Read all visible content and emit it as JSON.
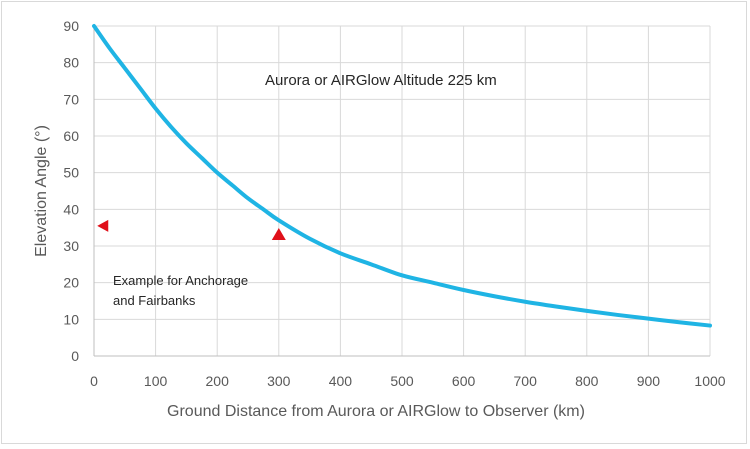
{
  "chart_data": {
    "type": "line",
    "title": "",
    "xlabel": "Ground Distance from Aurora or AIRGlow to Observer (km)",
    "ylabel": "Elevation Angle (°)",
    "xlim": [
      0,
      1000
    ],
    "ylim": [
      0,
      90
    ],
    "xticks": [
      "0",
      "100",
      "200",
      "300",
      "400",
      "500",
      "600",
      "700",
      "800",
      "900",
      "1000"
    ],
    "yticks": [
      "0",
      "10",
      "20",
      "30",
      "40",
      "50",
      "60",
      "70",
      "80",
      "90"
    ],
    "grid": true,
    "legend": "none",
    "series": [
      {
        "color": "#1fb4e4",
        "x": [
          0,
          25,
          50,
          75,
          100,
          125,
          150,
          175,
          200,
          225,
          250,
          275,
          300,
          350,
          400,
          450,
          500,
          550,
          600,
          650,
          700,
          750,
          800,
          850,
          900,
          950,
          1000
        ],
        "y": [
          90,
          84,
          78.5,
          73,
          67.5,
          62.5,
          58,
          54,
          50,
          46.5,
          43,
          40,
          37,
          32,
          28,
          25,
          22,
          20,
          18,
          16.3,
          14.8,
          13.5,
          12.3,
          11.2,
          10.2,
          9.2,
          8.3
        ]
      }
    ],
    "markers": [
      {
        "shape": "triangle-left",
        "x": 15,
        "y": 35.5,
        "color": "#e0101a"
      },
      {
        "shape": "triangle-up",
        "x": 300,
        "y": 33,
        "color": "#e0101a"
      }
    ],
    "annotations": [
      {
        "text": "Aurora or AIRGlow Altitude 225 km"
      },
      {
        "lines": [
          "Example for Anchorage",
          "and Fairbanks"
        ]
      }
    ]
  }
}
